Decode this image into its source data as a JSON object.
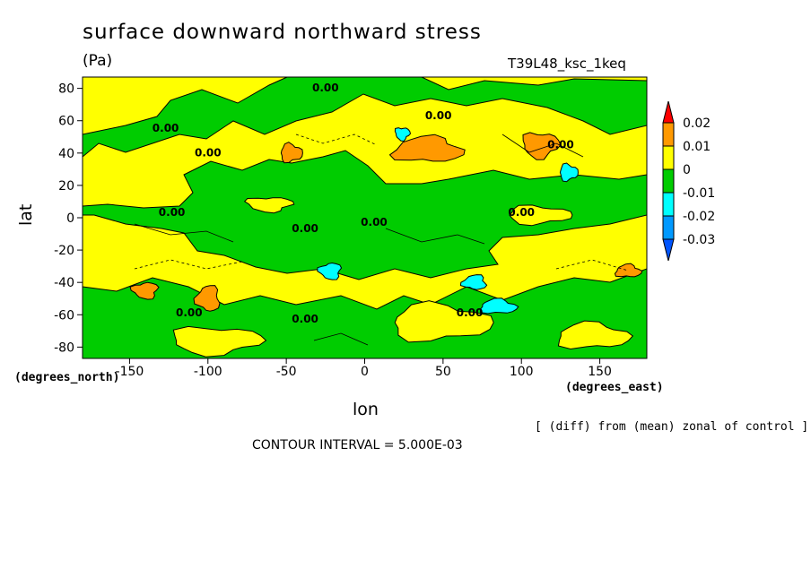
{
  "header": {
    "title": "surface downward northward stress",
    "units": "(Pa)",
    "run_id": "T39L48_ksc_1keq"
  },
  "footer": {
    "lat_unit": "(degrees_north)",
    "lon_unit": "(degrees_east)",
    "diff_note": "[ (diff) from (mean) zonal of control ]",
    "contour_interval": "CONTOUR INTERVAL = 5.000E-03"
  },
  "colors": {
    "over": "#ff0000",
    "c_0.01_0.02": "#ff9900",
    "c_0_0.01": "#ffff00",
    "c_-0.01_0": "#00cc00",
    "c_-0.02_-0.01": "#00ffff",
    "c_-0.03_-0.02": "#0099ff",
    "under": "#0055ff"
  },
  "chart_data": {
    "type": "heatmap",
    "title": "surface downward northward stress",
    "xlabel": "lon",
    "ylabel": "lat",
    "xlim": [
      -180,
      180
    ],
    "ylim": [
      -87,
      87
    ],
    "x_ticks": [
      -150,
      -100,
      -50,
      0,
      50,
      100,
      150
    ],
    "y_ticks": [
      80,
      60,
      40,
      20,
      0,
      -20,
      -40,
      -60,
      -80
    ],
    "colorbar": {
      "levels": [
        "0.02",
        "0.01",
        "0",
        "-0.01",
        "-0.02",
        "-0.03"
      ],
      "colors": [
        "#ff9900",
        "#ffff00",
        "#00cc00",
        "#00ffff",
        "#0099ff"
      ],
      "over_color": "#ff0000",
      "under_color": "#0055ff"
    },
    "contour_labels": [
      {
        "text": "0.00",
        "lon": -25,
        "lat": 80
      },
      {
        "text": "0.00",
        "lon": 47,
        "lat": 63
      },
      {
        "text": "0.00",
        "lon": -127,
        "lat": 55
      },
      {
        "text": "0.00",
        "lon": -100,
        "lat": 40
      },
      {
        "text": "0.00",
        "lon": 125,
        "lat": 45
      },
      {
        "text": "0.00",
        "lon": -123,
        "lat": 3
      },
      {
        "text": "0.00",
        "lon": -38,
        "lat": -7
      },
      {
        "text": "0.00",
        "lon": 6,
        "lat": -3
      },
      {
        "text": "0.00",
        "lon": 100,
        "lat": 3
      },
      {
        "text": "0.00",
        "lon": -112,
        "lat": -59
      },
      {
        "text": "0.00",
        "lon": -38,
        "lat": -63
      },
      {
        "text": "0.00",
        "lon": 67,
        "lat": -59
      }
    ],
    "regions": [
      {
        "range": "0.01 to 0.02",
        "lon": 40,
        "lat": 42
      },
      {
        "range": "0.01 to 0.02",
        "lon": -47,
        "lat": 40
      },
      {
        "range": "0.01 to 0.02",
        "lon": 112,
        "lat": 45
      },
      {
        "range": "0.01 to 0.02",
        "lon": -140,
        "lat": -45
      },
      {
        "range": "0.01 to 0.02",
        "lon": -100,
        "lat": -50
      },
      {
        "range": "0.01 to 0.02",
        "lon": 168,
        "lat": -33
      },
      {
        "range": "-0.02 to -0.01",
        "lon": 130,
        "lat": 28
      },
      {
        "range": "-0.02 to -0.01",
        "lon": 24,
        "lat": 52
      },
      {
        "range": "-0.02 to -0.01",
        "lon": -22,
        "lat": -33
      },
      {
        "range": "-0.02 to -0.01",
        "lon": 70,
        "lat": -40
      },
      {
        "range": "-0.02 to -0.01",
        "lon": 85,
        "lat": -55
      }
    ]
  }
}
